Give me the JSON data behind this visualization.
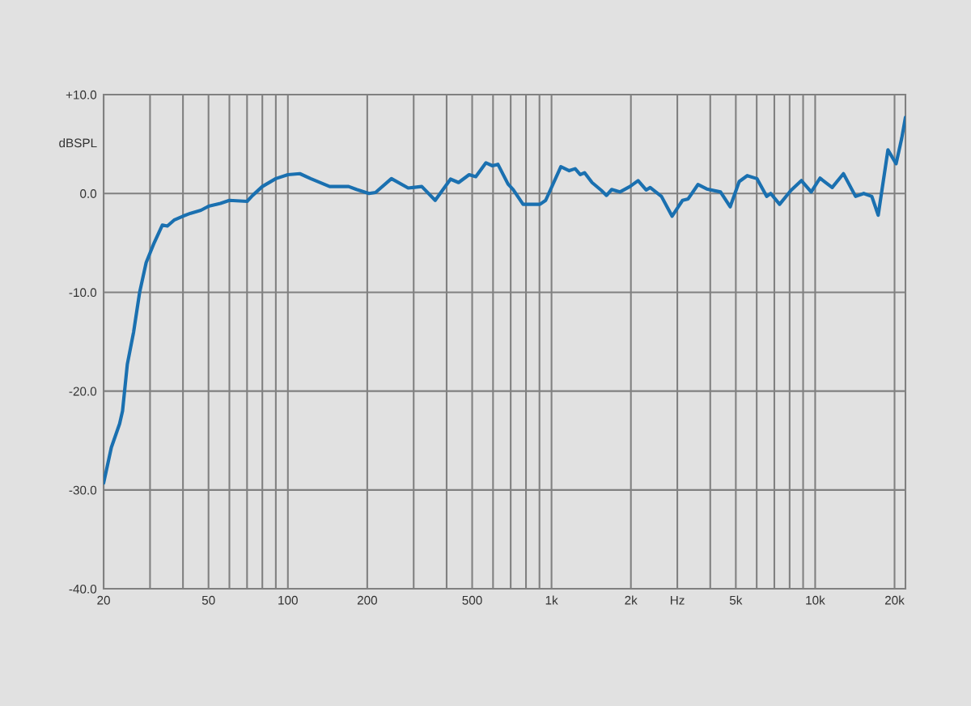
{
  "chart_data": {
    "type": "line",
    "ylabel": "dBSPL",
    "log": "x",
    "grid": true,
    "marker": "none",
    "line_style": "solid",
    "xlim": [
      20,
      22000
    ],
    "ylim": [
      -40,
      10
    ],
    "xticks": [
      {
        "value": 20,
        "label": "20"
      },
      {
        "value": 30,
        "label": null
      },
      {
        "value": 40,
        "label": null
      },
      {
        "value": 50,
        "label": "50"
      },
      {
        "value": 60,
        "label": null
      },
      {
        "value": 70,
        "label": null
      },
      {
        "value": 80,
        "label": null
      },
      {
        "value": 90,
        "label": null
      },
      {
        "value": 100,
        "label": "100"
      },
      {
        "value": 200,
        "label": "200"
      },
      {
        "value": 300,
        "label": null
      },
      {
        "value": 400,
        "label": null
      },
      {
        "value": 500,
        "label": "500"
      },
      {
        "value": 600,
        "label": null
      },
      {
        "value": 700,
        "label": null
      },
      {
        "value": 800,
        "label": null
      },
      {
        "value": 900,
        "label": null
      },
      {
        "value": 1000,
        "label": "1k"
      },
      {
        "value": 2000,
        "label": "2k"
      },
      {
        "value": 3000,
        "label": "Hz"
      },
      {
        "value": 4000,
        "label": null
      },
      {
        "value": 5000,
        "label": "5k"
      },
      {
        "value": 6000,
        "label": null
      },
      {
        "value": 7000,
        "label": null
      },
      {
        "value": 8000,
        "label": null
      },
      {
        "value": 9000,
        "label": null
      },
      {
        "value": 10000,
        "label": "10k"
      },
      {
        "value": 20000,
        "label": "20k"
      }
    ],
    "yticks": [
      {
        "value": 10,
        "label": "+10.0"
      },
      {
        "value": 0,
        "label": "0.0"
      },
      {
        "value": -10,
        "label": "-10.0"
      },
      {
        "value": -20,
        "label": "-20.0"
      },
      {
        "value": -30,
        "label": "-30.0"
      },
      {
        "value": -40,
        "label": "-40.0"
      }
    ],
    "series": [
      {
        "color": "#1a70b0",
        "x": [
          20,
          21.4,
          23.0,
          23.6,
          24.6,
          26,
          27.4,
          29,
          31.1,
          33.4,
          34.9,
          37,
          40,
          42.8,
          46.8,
          50,
          55.5,
          60,
          70,
          73.5,
          80,
          90,
          100,
          111,
          122,
          144,
          170,
          182,
          203,
          215,
          247,
          286,
          322,
          362,
          414,
          444,
          487,
          516,
          564,
          597,
          626,
          684,
          715,
          780,
          904,
          950,
          1085,
          1167,
          1229,
          1285,
          1334,
          1425,
          1546,
          1617,
          1690,
          1817,
          1984,
          2130,
          2285,
          2367,
          2612,
          2865,
          3140,
          3298,
          3592,
          3880,
          4375,
          4760,
          5150,
          5525,
          6010,
          6546,
          6780,
          7330,
          8090,
          8870,
          9660,
          10430,
          11600,
          12800,
          14230,
          15280,
          16400,
          17340,
          18880,
          20270,
          21300,
          22000
        ],
        "values": [
          -29.3,
          -25.7,
          -23.3,
          -22,
          -17.3,
          -14,
          -10,
          -7,
          -5,
          -3.2,
          -3.3,
          -2.7,
          -2.3,
          -2,
          -1.7,
          -1.3,
          -1,
          -0.7,
          -0.8,
          -0.2,
          0.7,
          1.5,
          1.9,
          2.0,
          1.5,
          0.7,
          0.7,
          0.4,
          0,
          0.1,
          1.5,
          0.55,
          0.7,
          -0.7,
          1.45,
          1.1,
          1.9,
          1.7,
          3.1,
          2.8,
          2.95,
          0.95,
          0.4,
          -1.1,
          -1.1,
          -0.7,
          2.7,
          2.3,
          2.5,
          1.9,
          2.1,
          1.1,
          0.3,
          -0.2,
          0.4,
          0.15,
          0.7,
          1.3,
          0.35,
          0.6,
          -0.3,
          -2.3,
          -0.7,
          -0.55,
          0.9,
          0.45,
          0.15,
          -1.35,
          1.2,
          1.8,
          1.5,
          -0.3,
          0,
          -1.1,
          0.3,
          1.3,
          0.15,
          1.55,
          0.6,
          2.0,
          -0.3,
          0,
          -0.3,
          -2.2,
          4.4,
          3.0,
          5.6,
          7.7
        ]
      }
    ]
  }
}
